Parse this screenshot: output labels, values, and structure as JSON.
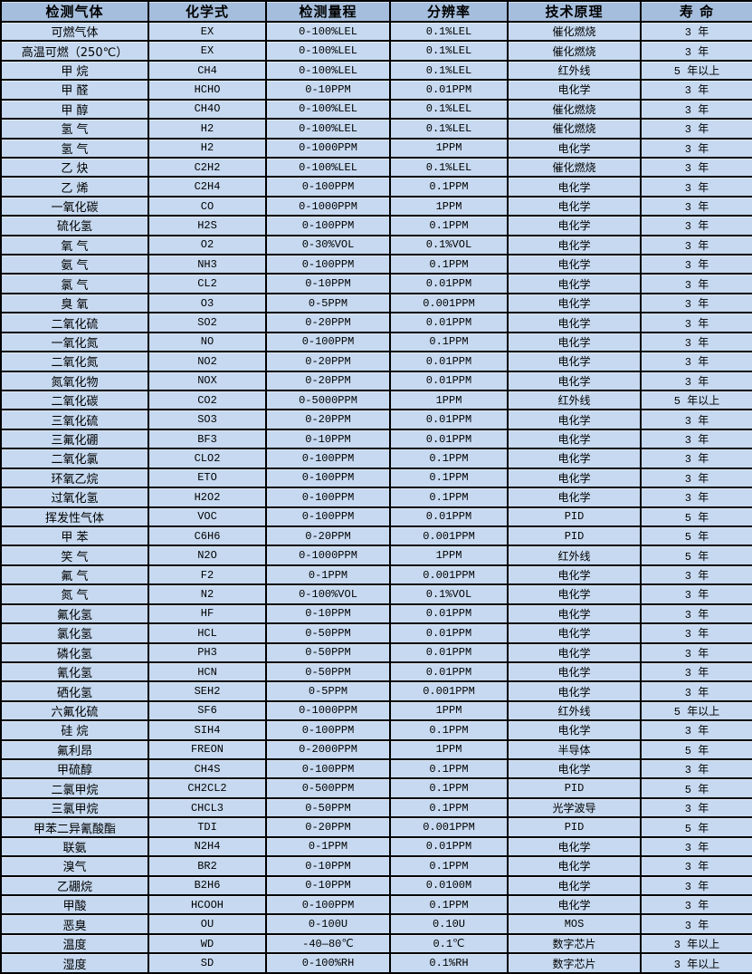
{
  "colors": {
    "header_bg": "#a6bedd",
    "row_bg": "#c6d9f0",
    "border": "#000000",
    "text": "#000000"
  },
  "table": {
    "columns": [
      "检测气体",
      "化学式",
      "检测量程",
      "分辨率",
      "技术原理",
      "寿 命"
    ],
    "rows": [
      [
        "可燃气体",
        "EX",
        "0-100%LEL",
        "0.1%LEL",
        "催化燃烧",
        "3 年"
      ],
      [
        "高温可燃（250℃）",
        "EX",
        "0-100%LEL",
        "0.1%LEL",
        "催化燃烧",
        "3 年"
      ],
      [
        "甲 烷",
        "CH4",
        "0-100%LEL",
        "0.1%LEL",
        "红外线",
        "5 年以上"
      ],
      [
        "甲 醛",
        "HCHO",
        "0-10PPM",
        "0.01PPM",
        "电化学",
        "3 年"
      ],
      [
        "甲 醇",
        "CH4O",
        "0-100%LEL",
        "0.1%LEL",
        "催化燃烧",
        "3 年"
      ],
      [
        "氢 气",
        "H2",
        "0-100%LEL",
        "0.1%LEL",
        "催化燃烧",
        "3 年"
      ],
      [
        "氢 气",
        "H2",
        "0-1000PPM",
        "1PPM",
        "电化学",
        "3 年"
      ],
      [
        "乙 炔",
        "C2H2",
        "0-100%LEL",
        "0.1%LEL",
        "催化燃烧",
        "3 年"
      ],
      [
        "乙 烯",
        "C2H4",
        "0-100PPM",
        "0.1PPM",
        "电化学",
        "3 年"
      ],
      [
        "一氧化碳",
        "CO",
        "0-1000PPM",
        "1PPM",
        "电化学",
        "3 年"
      ],
      [
        "硫化氢",
        "H2S",
        "0-100PPM",
        "0.1PPM",
        "电化学",
        "3 年"
      ],
      [
        "氧 气",
        "O2",
        "0-30%VOL",
        "0.1%VOL",
        "电化学",
        "3 年"
      ],
      [
        "氨 气",
        "NH3",
        "0-100PPM",
        "0.1PPM",
        "电化学",
        "3 年"
      ],
      [
        "氯 气",
        "CL2",
        "0-10PPM",
        "0.01PPM",
        "电化学",
        "3 年"
      ],
      [
        "臭 氧",
        "O3",
        "0-5PPM",
        "0.001PPM",
        "电化学",
        "3 年"
      ],
      [
        "二氧化硫",
        "SO2",
        "0-20PPM",
        "0.01PPM",
        "电化学",
        "3 年"
      ],
      [
        "一氧化氮",
        "NO",
        "0-100PPM",
        "0.1PPM",
        "电化学",
        "3 年"
      ],
      [
        "二氧化氮",
        "NO2",
        "0-20PPM",
        "0.01PPM",
        "电化学",
        "3 年"
      ],
      [
        "氮氧化物",
        "NOX",
        "0-20PPM",
        "0.01PPM",
        "电化学",
        "3 年"
      ],
      [
        "二氧化碳",
        "CO2",
        "0-5000PPM",
        "1PPM",
        "红外线",
        "5 年以上"
      ],
      [
        "三氧化硫",
        "SO3",
        "0-20PPM",
        "0.01PPM",
        "电化学",
        "3 年"
      ],
      [
        "三氟化硼",
        "BF3",
        "0-10PPM",
        "0.01PPM",
        "电化学",
        "3 年"
      ],
      [
        "二氧化氯",
        "CLO2",
        "0-100PPM",
        "0.1PPM",
        "电化学",
        "3 年"
      ],
      [
        "环氧乙烷",
        "ETO",
        "0-100PPM",
        "0.1PPM",
        "电化学",
        "3 年"
      ],
      [
        "过氧化氢",
        "H2O2",
        "0-100PPM",
        "0.1PPM",
        "电化学",
        "3 年"
      ],
      [
        "挥发性气体",
        "VOC",
        "0-100PPM",
        "0.01PPM",
        "PID",
        "5 年"
      ],
      [
        "甲 苯",
        "C6H6",
        "0-20PPM",
        "0.001PPM",
        "PID",
        "5 年"
      ],
      [
        "笑 气",
        "N2O",
        "0-1000PPM",
        "1PPM",
        "红外线",
        "5 年"
      ],
      [
        "氟 气",
        "F2",
        "0-1PPM",
        "0.001PPM",
        "电化学",
        "3 年"
      ],
      [
        "氮 气",
        "N2",
        "0-100%VOL",
        "0.1%VOL",
        "电化学",
        "3 年"
      ],
      [
        "氟化氢",
        "HF",
        "0-10PPM",
        "0.01PPM",
        "电化学",
        "3 年"
      ],
      [
        "氯化氢",
        "HCL",
        "0-50PPM",
        "0.01PPM",
        "电化学",
        "3 年"
      ],
      [
        "磷化氢",
        "PH3",
        "0-50PPM",
        "0.01PPM",
        "电化学",
        "3 年"
      ],
      [
        "氰化氢",
        "HCN",
        "0-50PPM",
        "0.01PPM",
        "电化学",
        "3 年"
      ],
      [
        "硒化氢",
        "SEH2",
        "0-5PPM",
        "0.001PPM",
        "电化学",
        "3 年"
      ],
      [
        "六氟化硫",
        "SF6",
        "0-1000PPM",
        "1PPM",
        "红外线",
        "5 年以上"
      ],
      [
        "硅 烷",
        "SIH4",
        "0-100PPM",
        "0.1PPM",
        "电化学",
        "3 年"
      ],
      [
        "氟利昂",
        "FREON",
        "0-2000PPM",
        "1PPM",
        "半导体",
        "5 年"
      ],
      [
        "甲硫醇",
        "CH4S",
        "0-100PPM",
        "0.1PPM",
        "电化学",
        "3 年"
      ],
      [
        "二氯甲烷",
        "CH2CL2",
        "0-500PPM",
        "0.1PPM",
        "PID",
        "5 年"
      ],
      [
        "三氯甲烷",
        "CHCL3",
        "0-50PPM",
        "0.1PPM",
        "光学波导",
        "3 年"
      ],
      [
        "甲苯二异氰酸酯",
        "TDI",
        "0-20PPM",
        "0.001PPM",
        "PID",
        "5 年"
      ],
      [
        "联氨",
        "N2H4",
        "0-1PPM",
        "0.01PPM",
        "电化学",
        "3 年"
      ],
      [
        "溴气",
        "BR2",
        "0-10PPM",
        "0.1PPM",
        "电化学",
        "3 年"
      ],
      [
        "乙硼烷",
        "B2H6",
        "0-10PPM",
        "0.0100M",
        "电化学",
        "3 年"
      ],
      [
        "甲酸",
        "HCOOH",
        "0-100PPM",
        "0.1PPM",
        "电化学",
        "3 年"
      ],
      [
        "恶臭",
        "OU",
        "0-100U",
        "0.10U",
        "MOS",
        "3 年"
      ],
      [
        "温度",
        "WD",
        "-40—80℃",
        "0.1℃",
        "数字芯片",
        "3 年以上"
      ],
      [
        "湿度",
        "SD",
        "0-100%RH",
        "0.1%RH",
        "数字芯片",
        "3 年以上"
      ]
    ]
  }
}
